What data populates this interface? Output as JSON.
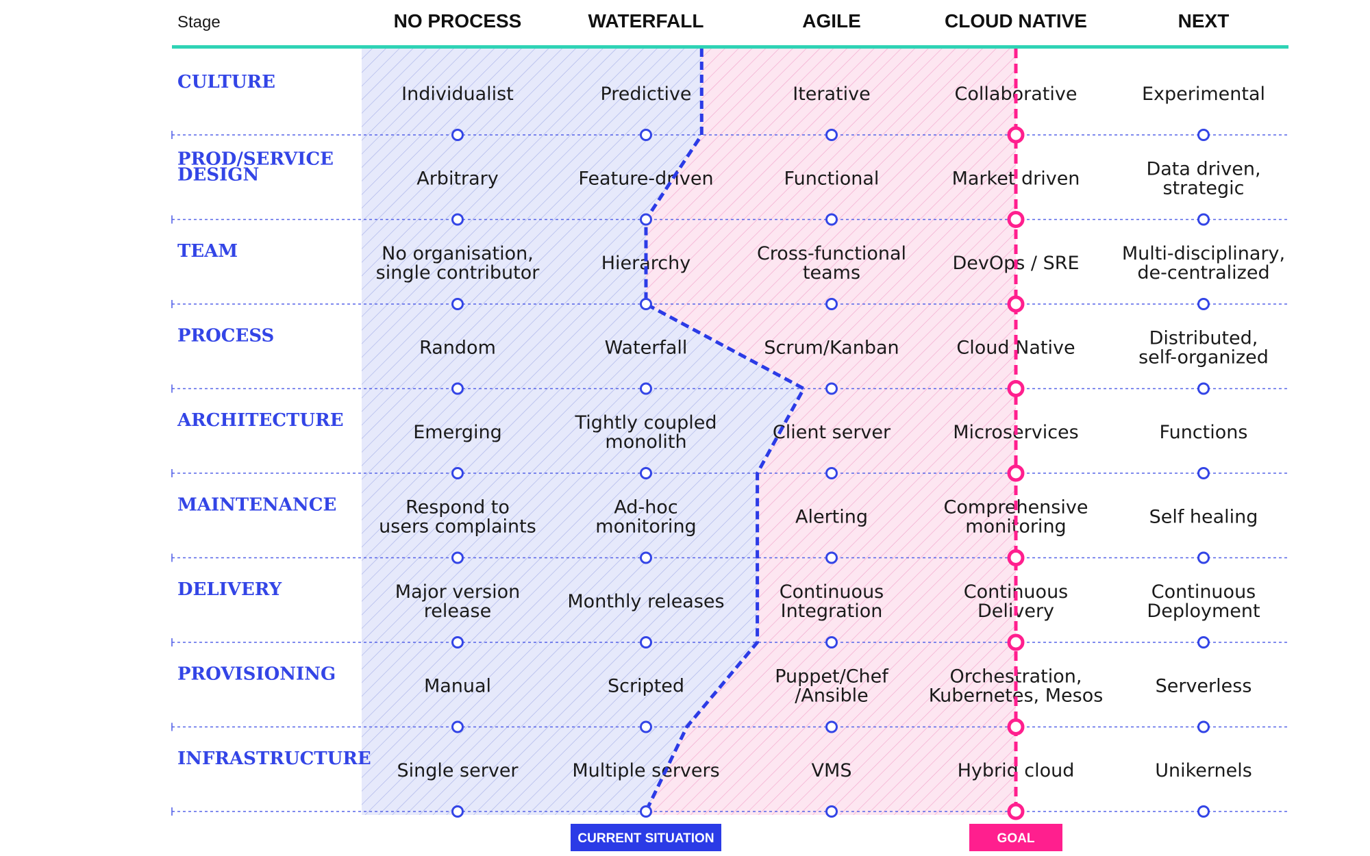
{
  "header": {
    "stage_label": "Stage",
    "columns": [
      "NO PROCESS",
      "WATERFALL",
      "AGILE",
      "CLOUD NATIVE",
      "NEXT"
    ]
  },
  "rows": [
    {
      "label": [
        "CULTURE"
      ],
      "cells": [
        [
          "Individualist"
        ],
        [
          "Predictive"
        ],
        [
          "Iterative"
        ],
        [
          "Collaborative"
        ],
        [
          "Experimental"
        ]
      ],
      "current": 1.3
    },
    {
      "label": [
        "PROD/SERVICE",
        "DESIGN"
      ],
      "cells": [
        [
          "Arbitrary"
        ],
        [
          "Feature-driven"
        ],
        [
          "Functional"
        ],
        [
          "Market driven"
        ],
        [
          "Data driven,",
          "strategic"
        ]
      ],
      "current": 1.0
    },
    {
      "label": [
        "TEAM"
      ],
      "cells": [
        [
          "No organisation,",
          "single contributor"
        ],
        [
          "Hierarchy"
        ],
        [
          "Cross-functional",
          "teams"
        ],
        [
          "DevOps / SRE"
        ],
        [
          "Multi-disciplinary,",
          "de-centralized"
        ]
      ],
      "current": 1.0
    },
    {
      "label": [
        "PROCESS"
      ],
      "cells": [
        [
          "Random"
        ],
        [
          "Waterfall"
        ],
        [
          "Scrum/Kanban"
        ],
        [
          "Cloud Native"
        ],
        [
          "Distributed,",
          "self-organized"
        ]
      ],
      "current": 1.85
    },
    {
      "label": [
        "ARCHITECTURE"
      ],
      "cells": [
        [
          "Emerging"
        ],
        [
          "Tightly coupled",
          "monolith"
        ],
        [
          "Client server"
        ],
        [
          "Microservices"
        ],
        [
          "Functions"
        ]
      ],
      "current": 1.6
    },
    {
      "label": [
        "MAINTENANCE"
      ],
      "cells": [
        [
          "Respond to",
          "users complaints"
        ],
        [
          "Ad-hoc",
          "monitoring"
        ],
        [
          "Alerting"
        ],
        [
          "Comprehensive",
          "monitoring"
        ],
        [
          "Self healing"
        ]
      ],
      "current": 1.6
    },
    {
      "label": [
        "DELIVERY"
      ],
      "cells": [
        [
          "Major version",
          "release"
        ],
        [
          "Monthly releases"
        ],
        [
          "Continuous",
          "Integration"
        ],
        [
          "Continuous",
          "Delivery"
        ],
        [
          "Continuous",
          "Deployment"
        ]
      ],
      "current": 1.6
    },
    {
      "label": [
        "PROVISIONING"
      ],
      "cells": [
        [
          "Manual"
        ],
        [
          "Scripted"
        ],
        [
          "Puppet/Chef",
          "/Ansible"
        ],
        [
          "Orchestration,",
          "Kubernetes, Mesos"
        ],
        [
          "Serverless"
        ]
      ],
      "current": 1.22
    },
    {
      "label": [
        "INFRASTRUCTURE"
      ],
      "cells": [
        [
          "Single server"
        ],
        [
          "Multiple servers"
        ],
        [
          "VMS"
        ],
        [
          "Hybrid cloud"
        ],
        [
          "Unikernels"
        ]
      ],
      "current": 1.0
    }
  ],
  "goal_stage": 3,
  "badges": {
    "current": "CURRENT SITUATION",
    "goal": "GOAL"
  },
  "colors": {
    "accent_teal": "#2fd3b5",
    "row_label": "#3345e6",
    "current_line": "#2b3be6",
    "goal_line": "#ff1f8e",
    "current_area": "#e4e7fb",
    "goal_area": "#fde3f0",
    "badge_current": "#2b3be6",
    "badge_goal": "#ff1f8e"
  }
}
